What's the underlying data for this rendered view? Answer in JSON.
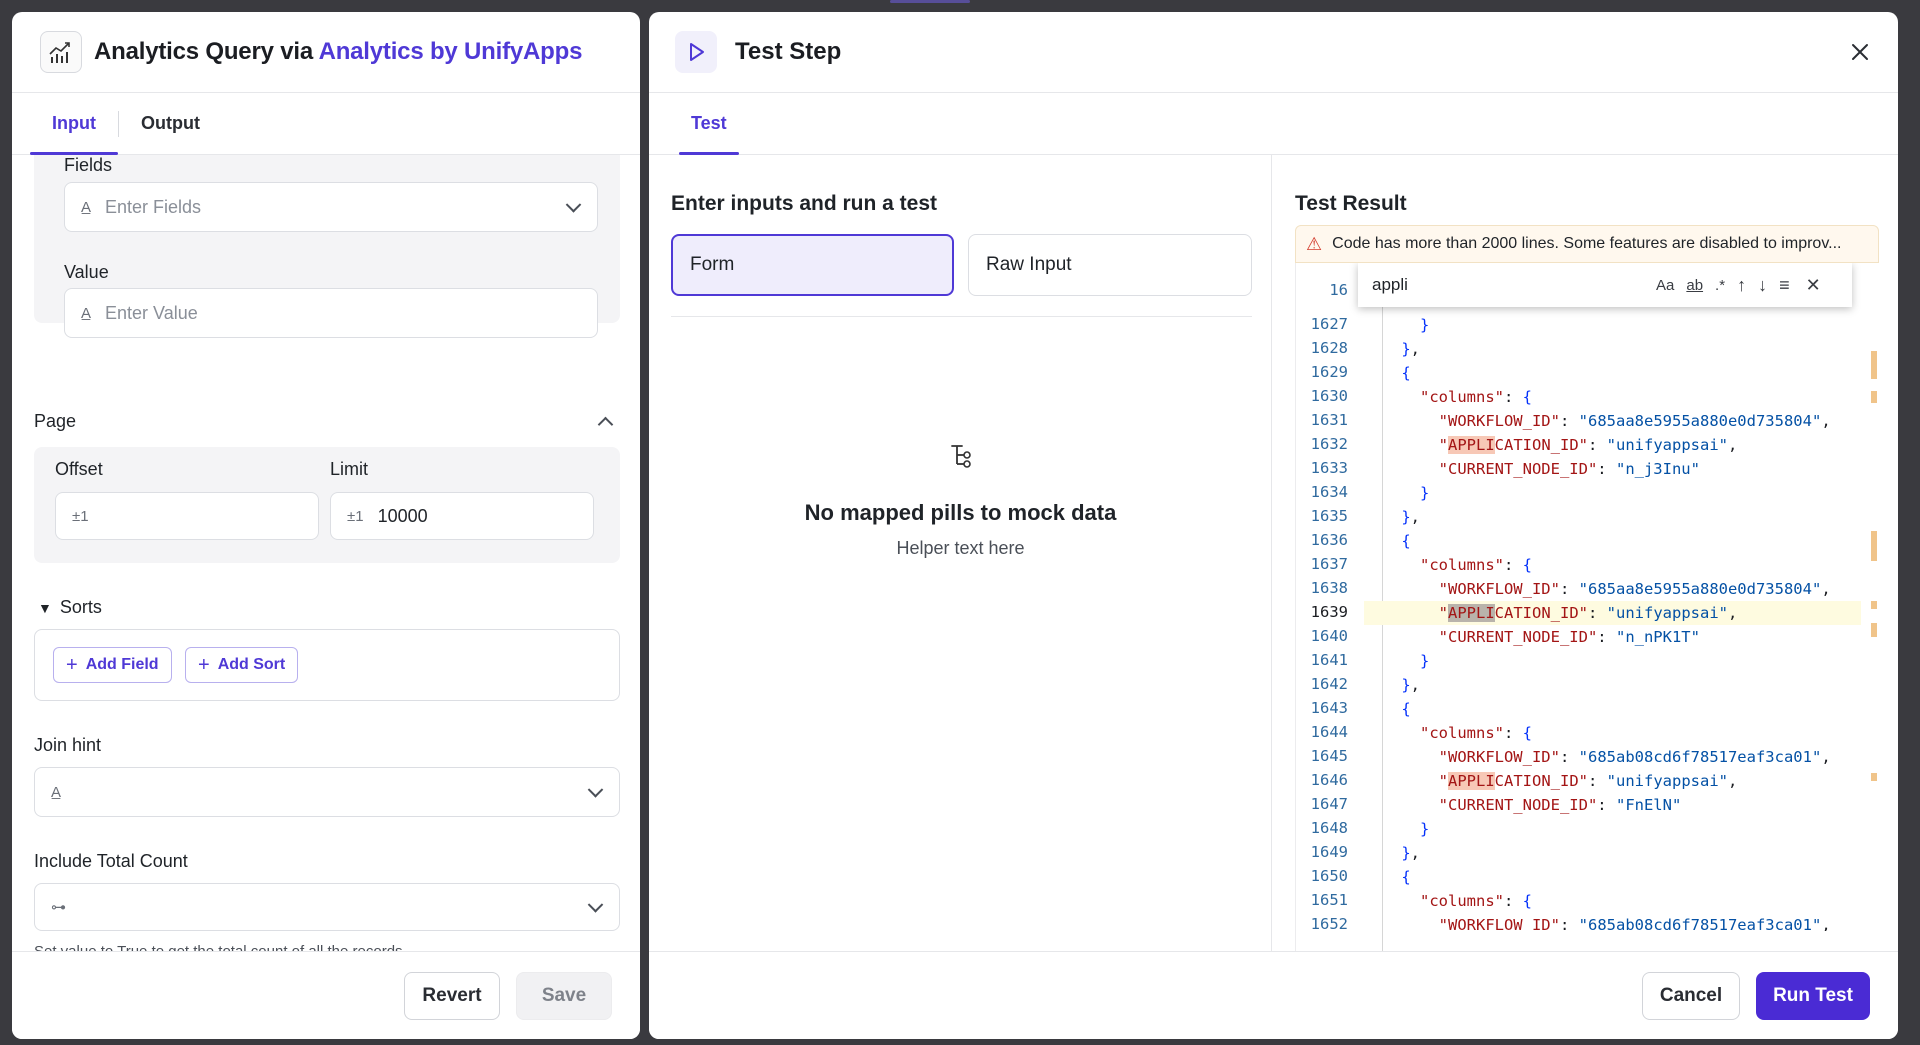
{
  "left_panel": {
    "title_prefix": "Analytics Query via ",
    "title_app": "Analytics by UnifyApps",
    "tabs": [
      {
        "label": "Input"
      },
      {
        "label": "Output"
      }
    ],
    "fields": {
      "label": "Fields",
      "placeholder": "Enter Fields"
    },
    "value": {
      "label": "Value",
      "placeholder": "Enter Value"
    },
    "page": {
      "title": "Page",
      "offset": {
        "label": "Offset",
        "lead": "±1",
        "value": ""
      },
      "limit": {
        "label": "Limit",
        "lead": "±1",
        "value": "10000"
      }
    },
    "sorts": {
      "title": "Sorts",
      "add_field": "Add Field",
      "add_sort": "Add Sort"
    },
    "join_hint": {
      "label": "Join hint"
    },
    "include_total_count": {
      "label": "Include Total Count",
      "help": "Set value to True to get the total count of all the records"
    },
    "footer": {
      "revert": "Revert",
      "save": "Save"
    }
  },
  "right_panel": {
    "title": "Test Step",
    "tabs": [
      {
        "label": "Test"
      }
    ],
    "inputs": {
      "title": "Enter inputs and run a test",
      "modes": [
        {
          "label": "Form"
        },
        {
          "label": "Raw Input"
        }
      ],
      "empty_title": "No mapped pills to mock data",
      "empty_sub": "Helper text here"
    },
    "result": {
      "title": "Test Result",
      "warning": "Code has more than 2000 lines. Some features are disabled to improv...",
      "find": {
        "query": "appli",
        "match_case": "Aa",
        "whole_word": "ab",
        "regex": ".*"
      },
      "partial_top_line_number": "16",
      "line_numbers": [
        "1627",
        "1628",
        "1629",
        "1630",
        "1631",
        "1632",
        "1633",
        "1634",
        "1635",
        "1636",
        "1637",
        "1638",
        "1639",
        "1640",
        "1641",
        "1642",
        "1643",
        "1644",
        "1645",
        "1646",
        "1647",
        "1648",
        "1649",
        "1650",
        "1651",
        "1652"
      ],
      "current_line": "1639",
      "records": [
        {
          "workflow_id": "685aa8e5955a880e0d735804",
          "application_id": "unifyappsai",
          "current_node_id": "n_j3Inu"
        },
        {
          "workflow_id": "685aa8e5955a880e0d735804",
          "application_id": "unifyappsai",
          "current_node_id": "n_nPK1T"
        },
        {
          "workflow_id": "685ab08cd6f78517eaf3ca01",
          "application_id": "unifyappsai",
          "current_node_id": "FnElN"
        },
        {
          "workflow_id": "685ab08cd6f78517eaf3ca01"
        }
      ]
    },
    "footer": {
      "cancel": "Cancel",
      "run": "Run Test"
    }
  },
  "colors": {
    "accent": "#4f39d6",
    "primary_button": "#4a2bd4",
    "warning_bg": "#fff8ee",
    "match_highlight": "#f7c8b6"
  }
}
